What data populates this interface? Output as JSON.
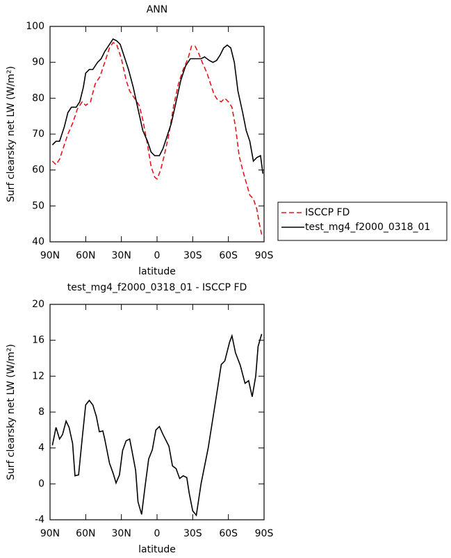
{
  "chart_data": [
    {
      "type": "line",
      "title": "ANN",
      "xlabel": "latitude",
      "ylabel": "Surf clearsky net LW (W/m²)",
      "xlim": [
        90,
        -90
      ],
      "xticks": [
        {
          "value": 90,
          "label": "90N"
        },
        {
          "value": 60,
          "label": "60N"
        },
        {
          "value": 30,
          "label": "30N"
        },
        0,
        {
          "value": -30,
          "label": "30S"
        },
        {
          "value": -60,
          "label": "60S"
        },
        {
          "value": -90,
          "label": "90S"
        }
      ],
      "ylim": [
        40,
        100
      ],
      "yticks": [
        40,
        50,
        60,
        70,
        80,
        90,
        100
      ],
      "legend": "outside-right",
      "series": [
        {
          "name": "ISCCP FD",
          "color": "#e8141a",
          "dash": true,
          "x": [
            88,
            85,
            82,
            78,
            75,
            71,
            67,
            63,
            60,
            56,
            52,
            48,
            44,
            40,
            37,
            34,
            30,
            26,
            23,
            19,
            15,
            12,
            8,
            5,
            2,
            0,
            -3,
            -6,
            -10,
            -14,
            -18,
            -22,
            -26,
            -29,
            -32,
            -35,
            -38,
            -42,
            -45,
            -48,
            -51,
            -54,
            -57,
            -60,
            -63,
            -66,
            -69,
            -72,
            -75,
            -78,
            -81,
            -84,
            -86,
            -88
          ],
          "values": [
            62.5,
            61.5,
            63,
            67,
            70,
            73,
            77,
            79,
            78,
            79,
            84,
            86,
            90,
            94,
            95.5,
            95,
            91,
            85,
            82,
            80,
            78,
            74,
            67,
            61,
            58,
            57.5,
            60,
            64,
            70,
            78,
            84,
            88,
            91,
            94.5,
            94.5,
            92.5,
            90,
            87,
            84,
            81,
            79.5,
            79,
            80,
            79,
            77.5,
            72,
            64,
            60,
            56.5,
            53,
            52,
            49,
            45,
            42
          ]
        },
        {
          "name": "test_mg4_f2000_0318_01",
          "color": "#000000",
          "dash": false,
          "x": [
            88,
            85,
            82,
            78,
            75,
            72,
            68,
            65,
            62,
            60,
            57,
            54,
            50,
            47,
            44,
            40,
            37,
            34,
            31,
            28,
            24,
            20,
            16,
            12,
            8,
            5,
            2,
            -2,
            -5,
            -8,
            -12,
            -16,
            -20,
            -24,
            -28,
            -31,
            -34,
            -37,
            -40,
            -44,
            -47,
            -50,
            -53,
            -56,
            -59,
            -62,
            -65,
            -68,
            -72,
            -75,
            -78,
            -81,
            -84,
            -87,
            -89
          ],
          "values": [
            67,
            68,
            68,
            72,
            76,
            77.5,
            77.5,
            79,
            83,
            87,
            88,
            88,
            90,
            91,
            93,
            95,
            96.5,
            96,
            95,
            92,
            88,
            83,
            77,
            71,
            68,
            65,
            64,
            64,
            66,
            69,
            73,
            79,
            85,
            89,
            91,
            91,
            91,
            91,
            91.5,
            90.5,
            90,
            90.5,
            92,
            94,
            94.8,
            94,
            90,
            82,
            76,
            71,
            68,
            62.5,
            63.5,
            64,
            59
          ]
        }
      ]
    },
    {
      "type": "line",
      "title": "test_mg4_f2000_0318_01 - ISCCP FD",
      "xlabel": "latitude",
      "ylabel": "Surf clearsky net LW (W/m²)",
      "xlim": [
        90,
        -90
      ],
      "xticks": [
        {
          "value": 90,
          "label": "90N"
        },
        {
          "value": 60,
          "label": "60N"
        },
        {
          "value": 30,
          "label": "30N"
        },
        0,
        {
          "value": -30,
          "label": "30S"
        },
        {
          "value": -60,
          "label": "60S"
        },
        {
          "value": -90,
          "label": "90S"
        }
      ],
      "ylim": [
        -4,
        20
      ],
      "yticks": [
        -4,
        0,
        4,
        8,
        12,
        16,
        20
      ],
      "series": [
        {
          "color": "#000000",
          "dash": false,
          "x": [
            88,
            85,
            82,
            79.5,
            76.5,
            74,
            71,
            69,
            66,
            63,
            60,
            57,
            54,
            51,
            48.5,
            45.6,
            44,
            40,
            37,
            34.5,
            31.6,
            29,
            26,
            23,
            21,
            18,
            16,
            13,
            10,
            7,
            4,
            1,
            -2,
            -5,
            -10,
            -13,
            -16,
            -19,
            -22,
            -25,
            -27,
            -30,
            -33,
            -37,
            -43,
            -49,
            -54,
            -57,
            -61,
            -63,
            -66,
            -70,
            -74,
            -77,
            -80,
            -83,
            -85,
            -88
          ],
          "values": [
            4.3,
            6.3,
            5,
            5.5,
            7,
            6.3,
            4.5,
            0.9,
            1,
            5,
            8.8,
            9.3,
            8.8,
            7.5,
            5.8,
            5.9,
            5,
            2.3,
            1.2,
            0.1,
            1,
            3.7,
            4.8,
            5,
            3.6,
            1.5,
            -2,
            -3.4,
            -0.2,
            2.8,
            3.8,
            6,
            6.4,
            5.5,
            4.2,
            2,
            1.7,
            0.6,
            0.9,
            0.7,
            -1,
            -3,
            -3.5,
            0,
            4,
            9,
            13.3,
            13.7,
            15.8,
            16.5,
            14.6,
            13.2,
            11.2,
            11.5,
            9.7,
            12,
            15.3,
            16.7
          ]
        }
      ]
    }
  ]
}
